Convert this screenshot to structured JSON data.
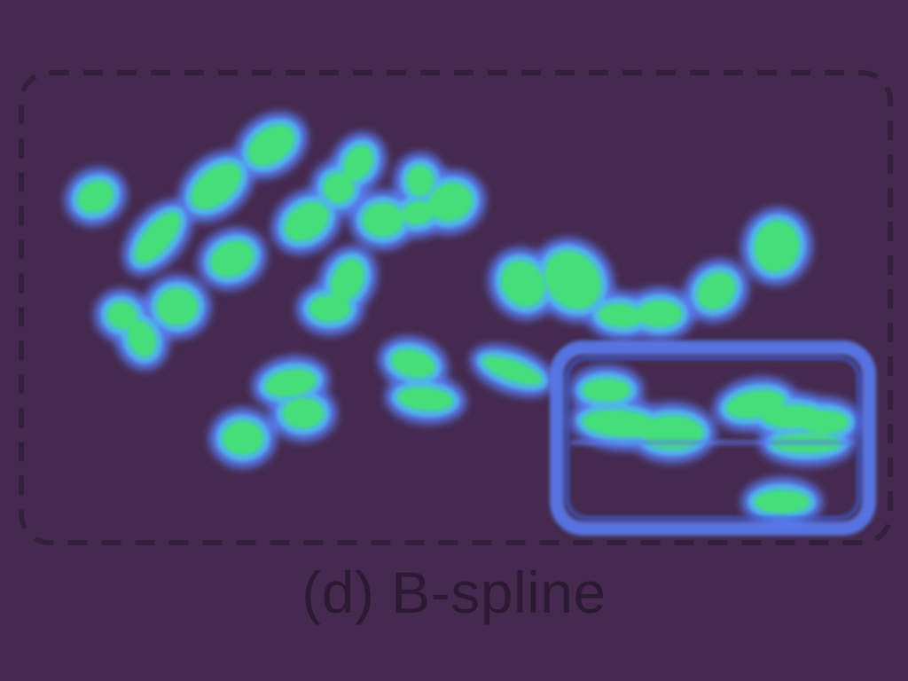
{
  "figure": {
    "caption": "(d) B-spline"
  },
  "colors": {
    "background": "#45294e",
    "frame_dash": "#34203d",
    "blob_outer": "#5a7cf0",
    "blob_mid": "#4fb8e8",
    "blob_core": "#45df7a",
    "caption_text": "#2c1a35"
  }
}
